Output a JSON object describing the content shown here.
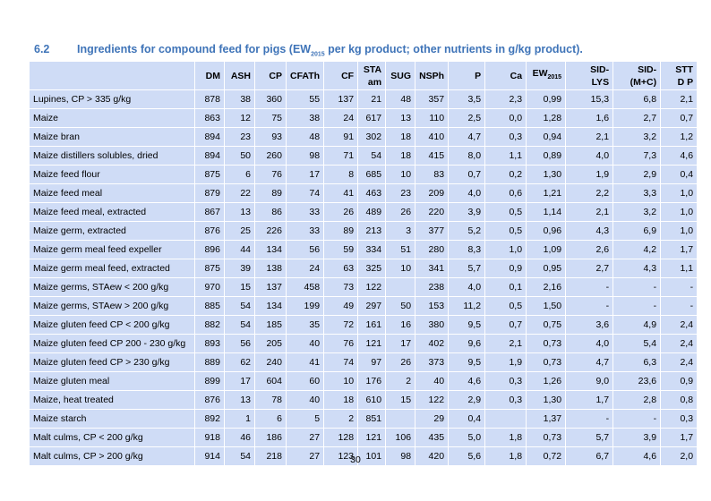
{
  "header": {
    "number": "6.2",
    "title_pre": "Ingredients for compound feed for pigs (EW",
    "title_sub": "2015",
    "title_post": " per kg product; other nutrients in g/kg product)."
  },
  "table": {
    "columns": [
      {
        "lines": [
          "DM"
        ]
      },
      {
        "lines": [
          "ASH"
        ]
      },
      {
        "lines": [
          "CP"
        ]
      },
      {
        "lines": [
          "CFATh"
        ]
      },
      {
        "lines": [
          "CF"
        ]
      },
      {
        "lines": [
          "STA",
          "am"
        ]
      },
      {
        "lines": [
          "SUG"
        ]
      },
      {
        "lines": [
          "NSPh"
        ]
      },
      {
        "lines": [
          "P"
        ]
      },
      {
        "lines": [
          "Ca"
        ]
      },
      {
        "lines": [
          "EW"
        ],
        "sub": "2015"
      },
      {
        "lines": [
          "SID-",
          "LYS"
        ]
      },
      {
        "lines": [
          "SID-",
          "(M+C)"
        ]
      },
      {
        "lines": [
          "STT",
          "D P"
        ]
      }
    ],
    "rows": [
      [
        "Lupines, CP > 335 g/kg",
        "878",
        "38",
        "360",
        "55",
        "137",
        "21",
        "48",
        "357",
        "3,5",
        "2,3",
        "0,99",
        "15,3",
        "6,8",
        "2,1"
      ],
      [
        "Maize",
        "863",
        "12",
        "75",
        "38",
        "24",
        "617",
        "13",
        "110",
        "2,5",
        "0,0",
        "1,28",
        "1,6",
        "2,7",
        "0,7"
      ],
      [
        "Maize bran",
        "894",
        "23",
        "93",
        "48",
        "91",
        "302",
        "18",
        "410",
        "4,7",
        "0,3",
        "0,94",
        "2,1",
        "3,2",
        "1,2"
      ],
      [
        "Maize distillers solubles, dried",
        "894",
        "50",
        "260",
        "98",
        "71",
        "54",
        "18",
        "415",
        "8,0",
        "1,1",
        "0,89",
        "4,0",
        "7,3",
        "4,6"
      ],
      [
        "Maize feed flour",
        "875",
        "6",
        "76",
        "17",
        "8",
        "685",
        "10",
        "83",
        "0,7",
        "0,2",
        "1,30",
        "1,9",
        "2,9",
        "0,4"
      ],
      [
        "Maize feed meal",
        "879",
        "22",
        "89",
        "74",
        "41",
        "463",
        "23",
        "209",
        "4,0",
        "0,6",
        "1,21",
        "2,2",
        "3,3",
        "1,0"
      ],
      [
        "Maize feed meal, extracted",
        "867",
        "13",
        "86",
        "33",
        "26",
        "489",
        "26",
        "220",
        "3,9",
        "0,5",
        "1,14",
        "2,1",
        "3,2",
        "1,0"
      ],
      [
        "Maize germ, extracted",
        "876",
        "25",
        "226",
        "33",
        "89",
        "213",
        "3",
        "377",
        "5,2",
        "0,5",
        "0,96",
        "4,3",
        "6,9",
        "1,0"
      ],
      [
        "Maize germ meal feed expeller",
        "896",
        "44",
        "134",
        "56",
        "59",
        "334",
        "51",
        "280",
        "8,3",
        "1,0",
        "1,09",
        "2,6",
        "4,2",
        "1,7"
      ],
      [
        "Maize germ meal feed, extracted",
        "875",
        "39",
        "138",
        "24",
        "63",
        "325",
        "10",
        "341",
        "5,7",
        "0,9",
        "0,95",
        "2,7",
        "4,3",
        "1,1"
      ],
      [
        "Maize germs, STAew < 200 g/kg",
        "970",
        "15",
        "137",
        "458",
        "73",
        "122",
        null,
        "238",
        "4,0",
        "0,1",
        "2,16",
        "-",
        "-",
        "-"
      ],
      [
        "Maize germs, STAew > 200 g/kg",
        "885",
        "54",
        "134",
        "199",
        "49",
        "297",
        "50",
        "153",
        "11,2",
        "0,5",
        "1,50",
        "-",
        "-",
        "-"
      ],
      [
        "Maize gluten feed CP < 200 g/kg",
        "882",
        "54",
        "185",
        "35",
        "72",
        "161",
        "16",
        "380",
        "9,5",
        "0,7",
        "0,75",
        "3,6",
        "4,9",
        "2,4"
      ],
      [
        "Maize gluten feed CP 200 - 230 g/kg",
        "893",
        "56",
        "205",
        "40",
        "76",
        "121",
        "17",
        "402",
        "9,6",
        "2,1",
        "0,73",
        "4,0",
        "5,4",
        "2,4"
      ],
      [
        "Maize gluten feed CP > 230 g/kg",
        "889",
        "62",
        "240",
        "41",
        "74",
        "97",
        "26",
        "373",
        "9,5",
        "1,9",
        "0,73",
        "4,7",
        "6,3",
        "2,4"
      ],
      [
        "Maize gluten meal",
        "899",
        "17",
        "604",
        "60",
        "10",
        "176",
        "2",
        "40",
        "4,6",
        "0,3",
        "1,26",
        "9,0",
        "23,6",
        "0,9"
      ],
      [
        "Maize, heat treated",
        "876",
        "13",
        "78",
        "40",
        "18",
        "610",
        "15",
        "122",
        "2,9",
        "0,3",
        "1,30",
        "1,7",
        "2,8",
        "0,8"
      ],
      [
        "Maize starch",
        "892",
        "1",
        "6",
        "5",
        "2",
        "851",
        null,
        "29",
        "0,4",
        null,
        "1,37",
        "-",
        "-",
        "0,3"
      ],
      [
        "Malt culms, CP < 200 g/kg",
        "918",
        "46",
        "186",
        "27",
        "128",
        "121",
        "106",
        "435",
        "5,0",
        "1,8",
        "0,73",
        "5,7",
        "3,9",
        "1,7"
      ],
      [
        "Malt culms, CP > 200 g/kg",
        "914",
        "54",
        "218",
        "27",
        "123",
        "101",
        "98",
        "420",
        "5,6",
        "1,8",
        "0,72",
        "6,7",
        "4,6",
        "2,0"
      ]
    ]
  },
  "footer": {
    "page": "30"
  }
}
